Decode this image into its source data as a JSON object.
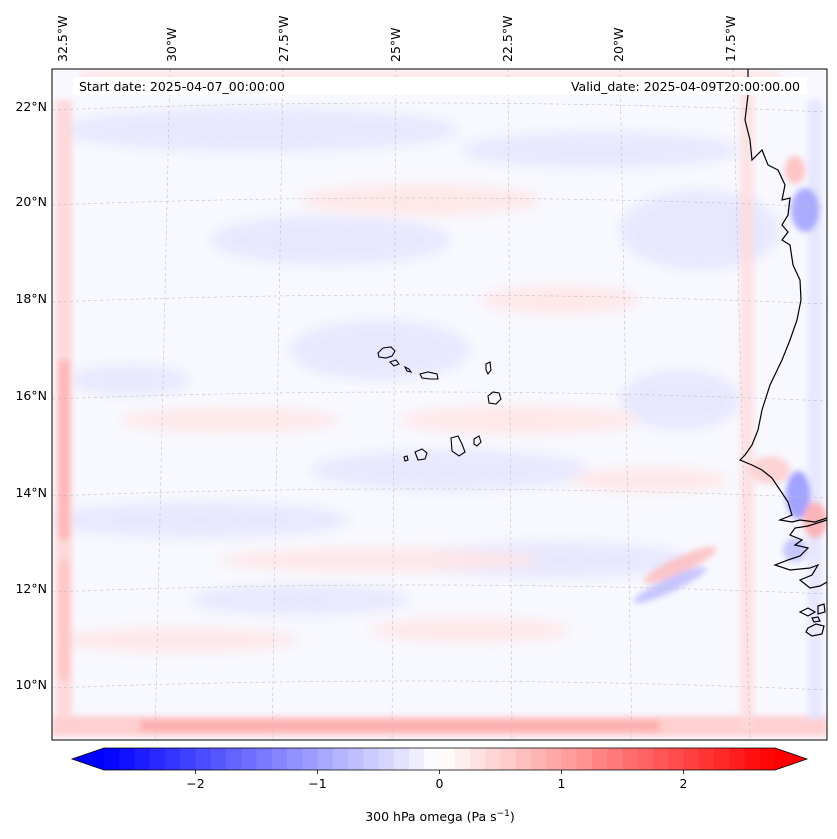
{
  "map": {
    "start_date": "Start date: 2025-04-07_00:00:00",
    "valid_date": "Valid_date: 2025-04-09T20:00:00.00",
    "lon_labels": [
      "32.5°W",
      "30°W",
      "27.5°W",
      "25°W",
      "22.5°W",
      "20°W",
      "17.5°W"
    ],
    "lat_labels": [
      "22°N",
      "20°N",
      "18°N",
      "16°N",
      "14°N",
      "12°N",
      "10°N"
    ]
  },
  "colorbar": {
    "ticks": [
      "−2",
      "−1",
      "0",
      "1",
      "2"
    ],
    "tick_values": [
      -2,
      -1,
      0,
      1,
      2
    ],
    "range": [
      -2.75,
      2.75
    ],
    "label": "300 hPa omega (Pa s",
    "label_superscript": "−1",
    "label_close": ")",
    "colors": {
      "min": "#0000ff",
      "mid": "#ffffff",
      "max": "#ff0000"
    }
  }
}
